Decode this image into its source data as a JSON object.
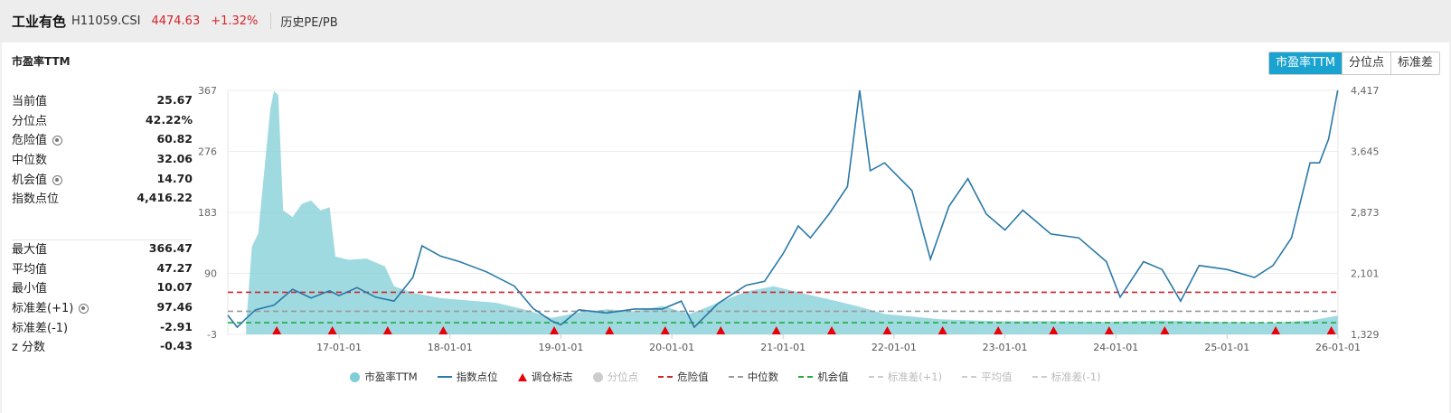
{
  "header": {
    "name": "工业有色",
    "code": "H11059.CSI",
    "price": "4474.63",
    "change": "+1.32%",
    "tab": "历史PE/PB"
  },
  "panel": {
    "title": "市盈率TTM",
    "buttons": [
      {
        "label": "市盈率TTM",
        "active": true
      },
      {
        "label": "分位点",
        "active": false
      },
      {
        "label": "标准差",
        "active": false
      }
    ]
  },
  "stats_top": [
    {
      "label": "当前值",
      "value": "25.67",
      "gear": false
    },
    {
      "label": "分位点",
      "value": "42.22%",
      "gear": false
    },
    {
      "label": "危险值",
      "value": "60.82",
      "gear": true
    },
    {
      "label": "中位数",
      "value": "32.06",
      "gear": false
    },
    {
      "label": "机会值",
      "value": "14.70",
      "gear": true
    },
    {
      "label": "指数点位",
      "value": "4,416.22",
      "gear": false
    }
  ],
  "stats_bottom": [
    {
      "label": "最大值",
      "value": "366.47",
      "gear": false
    },
    {
      "label": "平均值",
      "value": "47.27",
      "gear": false
    },
    {
      "label": "最小值",
      "value": "10.07",
      "gear": false
    },
    {
      "label": "标准差(+1)",
      "value": "97.46",
      "gear": true
    },
    {
      "label": "标准差(-1)",
      "value": "-2.91",
      "gear": false
    },
    {
      "label": "z 分数",
      "value": "-0.43",
      "gear": false
    }
  ],
  "legend": [
    {
      "label": "市盈率TTM",
      "kind": "circle",
      "color": "#7fcdd7",
      "dim": false
    },
    {
      "label": "指数点位",
      "kind": "line",
      "color": "#2a79a8",
      "dim": false
    },
    {
      "label": "调仓标志",
      "kind": "tri",
      "color": "#e8000b",
      "dim": false
    },
    {
      "label": "分位点",
      "kind": "circle",
      "color": "#cccccc",
      "dim": true
    },
    {
      "label": "危险值",
      "kind": "dash",
      "color": "#d4242b",
      "dim": false
    },
    {
      "label": "中位数",
      "kind": "dash",
      "color": "#999999",
      "dim": false
    },
    {
      "label": "机会值",
      "kind": "dash",
      "color": "#22aa44",
      "dim": false
    },
    {
      "label": "标准差(+1)",
      "kind": "dash",
      "color": "#cccccc",
      "dim": true
    },
    {
      "label": "平均值",
      "kind": "dash",
      "color": "#cccccc",
      "dim": true
    },
    {
      "label": "标准差(-1)",
      "kind": "dash",
      "color": "#cccccc",
      "dim": true
    }
  ],
  "chart_data": {
    "type": "area",
    "x_ticks": [
      "17-01-01",
      "18-01-01",
      "19-01-01",
      "20-01-01",
      "21-01-01",
      "22-01-01",
      "23-01-01",
      "24-01-01",
      "25-01-01",
      "26-01-01"
    ],
    "x_range": [
      "2016-01-01",
      "2026-01-01"
    ],
    "y_left": {
      "ticks": [
        "367",
        "276",
        "183",
        "90",
        "-3"
      ],
      "range": [
        -3,
        367
      ]
    },
    "y_right": {
      "ticks": [
        "4,417",
        "3,645",
        "2,873",
        "2,101",
        "1,329"
      ],
      "range": [
        1329,
        4417
      ]
    },
    "series": [
      {
        "name": "市盈率TTM",
        "axis": "left",
        "style": "area",
        "color": "#7fcdd7",
        "points": [
          [
            "2016-03-01",
            10
          ],
          [
            "2016-03-20",
            130
          ],
          [
            "2016-04-10",
            150
          ],
          [
            "2016-05-01",
            250
          ],
          [
            "2016-05-20",
            340
          ],
          [
            "2016-06-01",
            366
          ],
          [
            "2016-06-15",
            360
          ],
          [
            "2016-07-01",
            185
          ],
          [
            "2016-08-01",
            175
          ],
          [
            "2016-09-01",
            195
          ],
          [
            "2016-10-01",
            200
          ],
          [
            "2016-11-01",
            185
          ],
          [
            "2016-12-01",
            190
          ],
          [
            "2016-12-20",
            115
          ],
          [
            "2017-02-01",
            110
          ],
          [
            "2017-04-01",
            112
          ],
          [
            "2017-06-01",
            100
          ],
          [
            "2017-07-01",
            70
          ],
          [
            "2017-09-01",
            60
          ],
          [
            "2017-12-01",
            52
          ],
          [
            "2018-06-01",
            45
          ],
          [
            "2018-09-01",
            35
          ],
          [
            "2018-12-01",
            22
          ],
          [
            "2019-03-01",
            30
          ],
          [
            "2019-06-01",
            35
          ],
          [
            "2019-09-01",
            32
          ],
          [
            "2019-12-01",
            40
          ],
          [
            "2020-03-01",
            28
          ],
          [
            "2020-06-01",
            45
          ],
          [
            "2020-09-01",
            62
          ],
          [
            "2020-12-01",
            70
          ],
          [
            "2021-03-01",
            60
          ],
          [
            "2021-06-01",
            50
          ],
          [
            "2021-09-01",
            40
          ],
          [
            "2021-12-01",
            28
          ],
          [
            "2022-06-01",
            20
          ],
          [
            "2022-12-01",
            17
          ],
          [
            "2023-06-01",
            17
          ],
          [
            "2023-12-01",
            16
          ],
          [
            "2024-06-01",
            18
          ],
          [
            "2024-12-01",
            16
          ],
          [
            "2025-06-01",
            15
          ],
          [
            "2025-10-01",
            18
          ],
          [
            "2025-12-15",
            24
          ],
          [
            "2025-12-31",
            25.67
          ]
        ]
      },
      {
        "name": "指数点位",
        "axis": "right",
        "style": "line",
        "color": "#2a79a8",
        "points": [
          [
            "2016-01-01",
            1570
          ],
          [
            "2016-02-01",
            1420
          ],
          [
            "2016-03-01",
            1530
          ],
          [
            "2016-04-01",
            1640
          ],
          [
            "2016-06-01",
            1700
          ],
          [
            "2016-08-01",
            1900
          ],
          [
            "2016-10-01",
            1790
          ],
          [
            "2016-12-01",
            1880
          ],
          [
            "2017-01-01",
            1820
          ],
          [
            "2017-03-01",
            1920
          ],
          [
            "2017-05-01",
            1800
          ],
          [
            "2017-07-01",
            1750
          ],
          [
            "2017-09-01",
            2050
          ],
          [
            "2017-10-01",
            2450
          ],
          [
            "2017-12-01",
            2320
          ],
          [
            "2018-02-01",
            2250
          ],
          [
            "2018-05-01",
            2120
          ],
          [
            "2018-08-01",
            1940
          ],
          [
            "2018-10-01",
            1660
          ],
          [
            "2018-12-01",
            1500
          ],
          [
            "2019-01-01",
            1450
          ],
          [
            "2019-03-01",
            1640
          ],
          [
            "2019-06-01",
            1600
          ],
          [
            "2019-09-01",
            1650
          ],
          [
            "2019-12-01",
            1650
          ],
          [
            "2020-02-01",
            1750
          ],
          [
            "2020-03-15",
            1420
          ],
          [
            "2020-06-01",
            1720
          ],
          [
            "2020-09-01",
            1950
          ],
          [
            "2020-11-01",
            2000
          ],
          [
            "2021-01-01",
            2350
          ],
          [
            "2021-02-20",
            2700
          ],
          [
            "2021-04-01",
            2550
          ],
          [
            "2021-06-01",
            2850
          ],
          [
            "2021-08-01",
            3200
          ],
          [
            "2021-09-10",
            4417
          ],
          [
            "2021-10-15",
            3400
          ],
          [
            "2021-12-01",
            3500
          ],
          [
            "2022-03-01",
            3150
          ],
          [
            "2022-05-01",
            2280
          ],
          [
            "2022-07-01",
            2950
          ],
          [
            "2022-09-01",
            3300
          ],
          [
            "2022-11-01",
            2850
          ],
          [
            "2023-01-01",
            2650
          ],
          [
            "2023-03-01",
            2900
          ],
          [
            "2023-06-01",
            2600
          ],
          [
            "2023-09-01",
            2550
          ],
          [
            "2023-12-01",
            2250
          ],
          [
            "2024-01-15",
            1800
          ],
          [
            "2024-04-01",
            2250
          ],
          [
            "2024-06-01",
            2150
          ],
          [
            "2024-08-01",
            1750
          ],
          [
            "2024-10-01",
            2200
          ],
          [
            "2025-01-01",
            2150
          ],
          [
            "2025-04-01",
            2050
          ],
          [
            "2025-06-01",
            2200
          ],
          [
            "2025-08-01",
            2550
          ],
          [
            "2025-10-01",
            3500
          ],
          [
            "2025-11-01",
            3500
          ],
          [
            "2025-12-01",
            3800
          ],
          [
            "2025-12-31",
            4417
          ]
        ]
      }
    ],
    "reference_lines": [
      {
        "name": "危险值",
        "value": 60.82,
        "color": "#d4242b"
      },
      {
        "name": "中位数",
        "value": 32.06,
        "color": "#999999"
      },
      {
        "name": "机会值",
        "value": 14.7,
        "color": "#22aa44"
      }
    ],
    "rebalance_markers": [
      "2016-06-10",
      "2016-12-10",
      "2017-06-10",
      "2017-12-10",
      "2018-12-10",
      "2019-06-10",
      "2019-12-10",
      "2020-06-10",
      "2020-12-10",
      "2021-06-10",
      "2021-12-10",
      "2022-06-10",
      "2022-12-10",
      "2023-06-10",
      "2023-12-10",
      "2024-06-10",
      "2025-06-10",
      "2025-12-10"
    ],
    "grid": true,
    "legend_position": "bottom-center"
  }
}
